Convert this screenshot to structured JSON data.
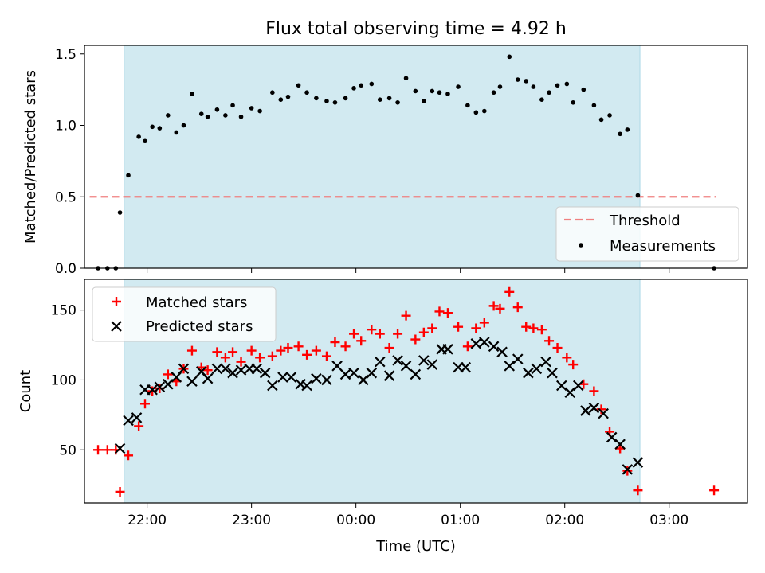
{
  "figure": {
    "title": "Flux total observing time = 4.92 h"
  },
  "chart_data": [
    {
      "type": "scatter",
      "ylabel": "Matched/Predicted stars",
      "xlabel": "",
      "x_unit": "hours (UTC, continuing past midnight)",
      "xlim": [
        21.4,
        3.75
      ],
      "ylim": [
        0,
        1.56
      ],
      "yticks": [
        "0.0",
        "0.5",
        "1.0",
        "1.5"
      ],
      "shaded_interval": [
        21.78,
        2.72
      ],
      "shade_color": "#add8e6",
      "threshold": {
        "name": "Threshold",
        "value": 0.5,
        "x_range": [
          21.45,
          3.45
        ],
        "color": "#f08080"
      },
      "legend": {
        "position": "lower right",
        "entries": [
          "Threshold",
          "Measurements"
        ]
      },
      "series": [
        {
          "name": "Measurements",
          "color": "#000000",
          "points": [
            [
              21.53,
              0.0
            ],
            [
              21.62,
              0.0
            ],
            [
              21.7,
              0.0
            ],
            [
              21.74,
              0.39
            ],
            [
              21.82,
              0.65
            ],
            [
              21.92,
              0.92
            ],
            [
              21.98,
              0.89
            ],
            [
              22.05,
              0.99
            ],
            [
              22.12,
              0.98
            ],
            [
              22.2,
              1.07
            ],
            [
              22.28,
              0.95
            ],
            [
              22.35,
              1.0
            ],
            [
              22.43,
              1.22
            ],
            [
              22.52,
              1.08
            ],
            [
              22.58,
              1.06
            ],
            [
              22.67,
              1.11
            ],
            [
              22.75,
              1.07
            ],
            [
              22.82,
              1.14
            ],
            [
              22.9,
              1.06
            ],
            [
              23.0,
              1.12
            ],
            [
              23.08,
              1.1
            ],
            [
              23.2,
              1.23
            ],
            [
              23.28,
              1.18
            ],
            [
              23.35,
              1.2
            ],
            [
              23.45,
              1.28
            ],
            [
              23.53,
              1.23
            ],
            [
              23.62,
              1.19
            ],
            [
              23.72,
              1.17
            ],
            [
              23.8,
              1.16
            ],
            [
              23.9,
              1.19
            ],
            [
              23.98,
              1.26
            ],
            [
              24.05,
              1.28
            ],
            [
              24.15,
              1.29
            ],
            [
              24.23,
              1.18
            ],
            [
              24.32,
              1.19
            ],
            [
              24.4,
              1.16
            ],
            [
              24.48,
              1.33
            ],
            [
              24.57,
              1.24
            ],
            [
              24.65,
              1.17
            ],
            [
              24.73,
              1.24
            ],
            [
              24.8,
              1.23
            ],
            [
              24.88,
              1.22
            ],
            [
              24.98,
              1.27
            ],
            [
              25.07,
              1.14
            ],
            [
              25.15,
              1.09
            ],
            [
              25.23,
              1.1
            ],
            [
              25.32,
              1.23
            ],
            [
              25.38,
              1.27
            ],
            [
              25.47,
              1.48
            ],
            [
              25.55,
              1.32
            ],
            [
              25.63,
              1.31
            ],
            [
              25.7,
              1.27
            ],
            [
              25.78,
              1.18
            ],
            [
              25.85,
              1.23
            ],
            [
              25.93,
              1.28
            ],
            [
              26.02,
              1.29
            ],
            [
              26.08,
              1.16
            ],
            [
              26.18,
              1.25
            ],
            [
              26.28,
              1.14
            ],
            [
              26.35,
              1.04
            ],
            [
              26.43,
              1.07
            ],
            [
              26.53,
              0.94
            ],
            [
              26.6,
              0.97
            ],
            [
              26.7,
              0.51
            ],
            [
              27.43,
              0.0
            ]
          ]
        }
      ]
    },
    {
      "type": "scatter",
      "xlabel": "Time (UTC)",
      "ylabel": "Count",
      "x_unit": "hours (UTC, continuing past midnight)",
      "xlim": [
        21.4,
        3.75
      ],
      "ylim": [
        12,
        172
      ],
      "xticks": [
        "22:00",
        "23:00",
        "00:00",
        "01:00",
        "02:00",
        "03:00"
      ],
      "yticks": [
        "50",
        "100",
        "150"
      ],
      "shaded_interval": [
        21.78,
        2.72
      ],
      "shade_color": "#add8e6",
      "legend": {
        "position": "upper left",
        "entries": [
          "Matched stars",
          "Predicted stars"
        ]
      },
      "series": [
        {
          "name": "Matched stars",
          "marker": "plus",
          "color": "#ff0000",
          "points": [
            [
              21.53,
              50
            ],
            [
              21.62,
              50
            ],
            [
              21.7,
              50
            ],
            [
              21.74,
              20
            ],
            [
              21.82,
              46
            ],
            [
              21.92,
              67
            ],
            [
              21.98,
              83
            ],
            [
              22.05,
              92
            ],
            [
              22.12,
              94
            ],
            [
              22.2,
              104
            ],
            [
              22.28,
              99
            ],
            [
              22.35,
              108
            ],
            [
              22.43,
              121
            ],
            [
              22.52,
              109
            ],
            [
              22.58,
              107
            ],
            [
              22.67,
              120
            ],
            [
              22.75,
              116
            ],
            [
              22.82,
              120
            ],
            [
              22.9,
              113
            ],
            [
              23.0,
              121
            ],
            [
              23.08,
              116
            ],
            [
              23.2,
              117
            ],
            [
              23.28,
              121
            ],
            [
              23.35,
              123
            ],
            [
              23.45,
              124
            ],
            [
              23.53,
              118
            ],
            [
              23.62,
              121
            ],
            [
              23.72,
              117
            ],
            [
              23.8,
              127
            ],
            [
              23.9,
              124
            ],
            [
              23.98,
              133
            ],
            [
              24.05,
              128
            ],
            [
              24.15,
              136
            ],
            [
              24.23,
              133
            ],
            [
              24.32,
              123
            ],
            [
              24.4,
              133
            ],
            [
              24.48,
              146
            ],
            [
              24.57,
              129
            ],
            [
              24.65,
              134
            ],
            [
              24.73,
              137
            ],
            [
              24.8,
              149
            ],
            [
              24.88,
              148
            ],
            [
              24.98,
              138
            ],
            [
              25.07,
              124
            ],
            [
              25.15,
              137
            ],
            [
              25.23,
              141
            ],
            [
              25.32,
              153
            ],
            [
              25.38,
              151
            ],
            [
              25.47,
              163
            ],
            [
              25.55,
              152
            ],
            [
              25.63,
              138
            ],
            [
              25.7,
              137
            ],
            [
              25.78,
              136
            ],
            [
              25.85,
              128
            ],
            [
              25.93,
              123
            ],
            [
              26.02,
              116
            ],
            [
              26.08,
              111
            ],
            [
              26.18,
              97
            ],
            [
              26.28,
              92
            ],
            [
              26.35,
              79
            ],
            [
              26.43,
              63
            ],
            [
              26.53,
              51
            ],
            [
              26.6,
              35
            ],
            [
              26.7,
              21
            ],
            [
              27.43,
              21
            ]
          ]
        },
        {
          "name": "Predicted stars",
          "marker": "x",
          "color": "#000000",
          "points": [
            [
              21.74,
              51
            ],
            [
              21.82,
              71
            ],
            [
              21.9,
              73
            ],
            [
              21.98,
              93
            ],
            [
              22.05,
              93
            ],
            [
              22.12,
              95
            ],
            [
              22.2,
              97
            ],
            [
              22.28,
              102
            ],
            [
              22.35,
              108
            ],
            [
              22.43,
              99
            ],
            [
              22.52,
              106
            ],
            [
              22.58,
              101
            ],
            [
              22.67,
              108
            ],
            [
              22.75,
              108
            ],
            [
              22.82,
              105
            ],
            [
              22.9,
              107
            ],
            [
              22.98,
              108
            ],
            [
              23.05,
              108
            ],
            [
              23.13,
              105
            ],
            [
              23.2,
              96
            ],
            [
              23.3,
              102
            ],
            [
              23.38,
              102
            ],
            [
              23.47,
              97
            ],
            [
              23.53,
              96
            ],
            [
              23.62,
              101
            ],
            [
              23.72,
              100
            ],
            [
              23.82,
              110
            ],
            [
              23.9,
              104
            ],
            [
              23.98,
              105
            ],
            [
              24.07,
              100
            ],
            [
              24.15,
              105
            ],
            [
              24.23,
              113
            ],
            [
              24.32,
              103
            ],
            [
              24.4,
              114
            ],
            [
              24.48,
              110
            ],
            [
              24.57,
              104
            ],
            [
              24.65,
              114
            ],
            [
              24.73,
              111
            ],
            [
              24.82,
              122
            ],
            [
              24.88,
              122
            ],
            [
              24.98,
              109
            ],
            [
              25.05,
              109
            ],
            [
              25.15,
              126
            ],
            [
              25.23,
              127
            ],
            [
              25.32,
              124
            ],
            [
              25.4,
              120
            ],
            [
              25.47,
              110
            ],
            [
              25.55,
              115
            ],
            [
              25.65,
              105
            ],
            [
              25.73,
              108
            ],
            [
              25.82,
              113
            ],
            [
              25.88,
              105
            ],
            [
              25.97,
              96
            ],
            [
              26.05,
              91
            ],
            [
              26.13,
              96
            ],
            [
              26.2,
              78
            ],
            [
              26.28,
              80
            ],
            [
              26.37,
              76
            ],
            [
              26.45,
              59
            ],
            [
              26.53,
              54
            ],
            [
              26.6,
              36
            ],
            [
              26.7,
              41
            ]
          ]
        }
      ]
    }
  ]
}
